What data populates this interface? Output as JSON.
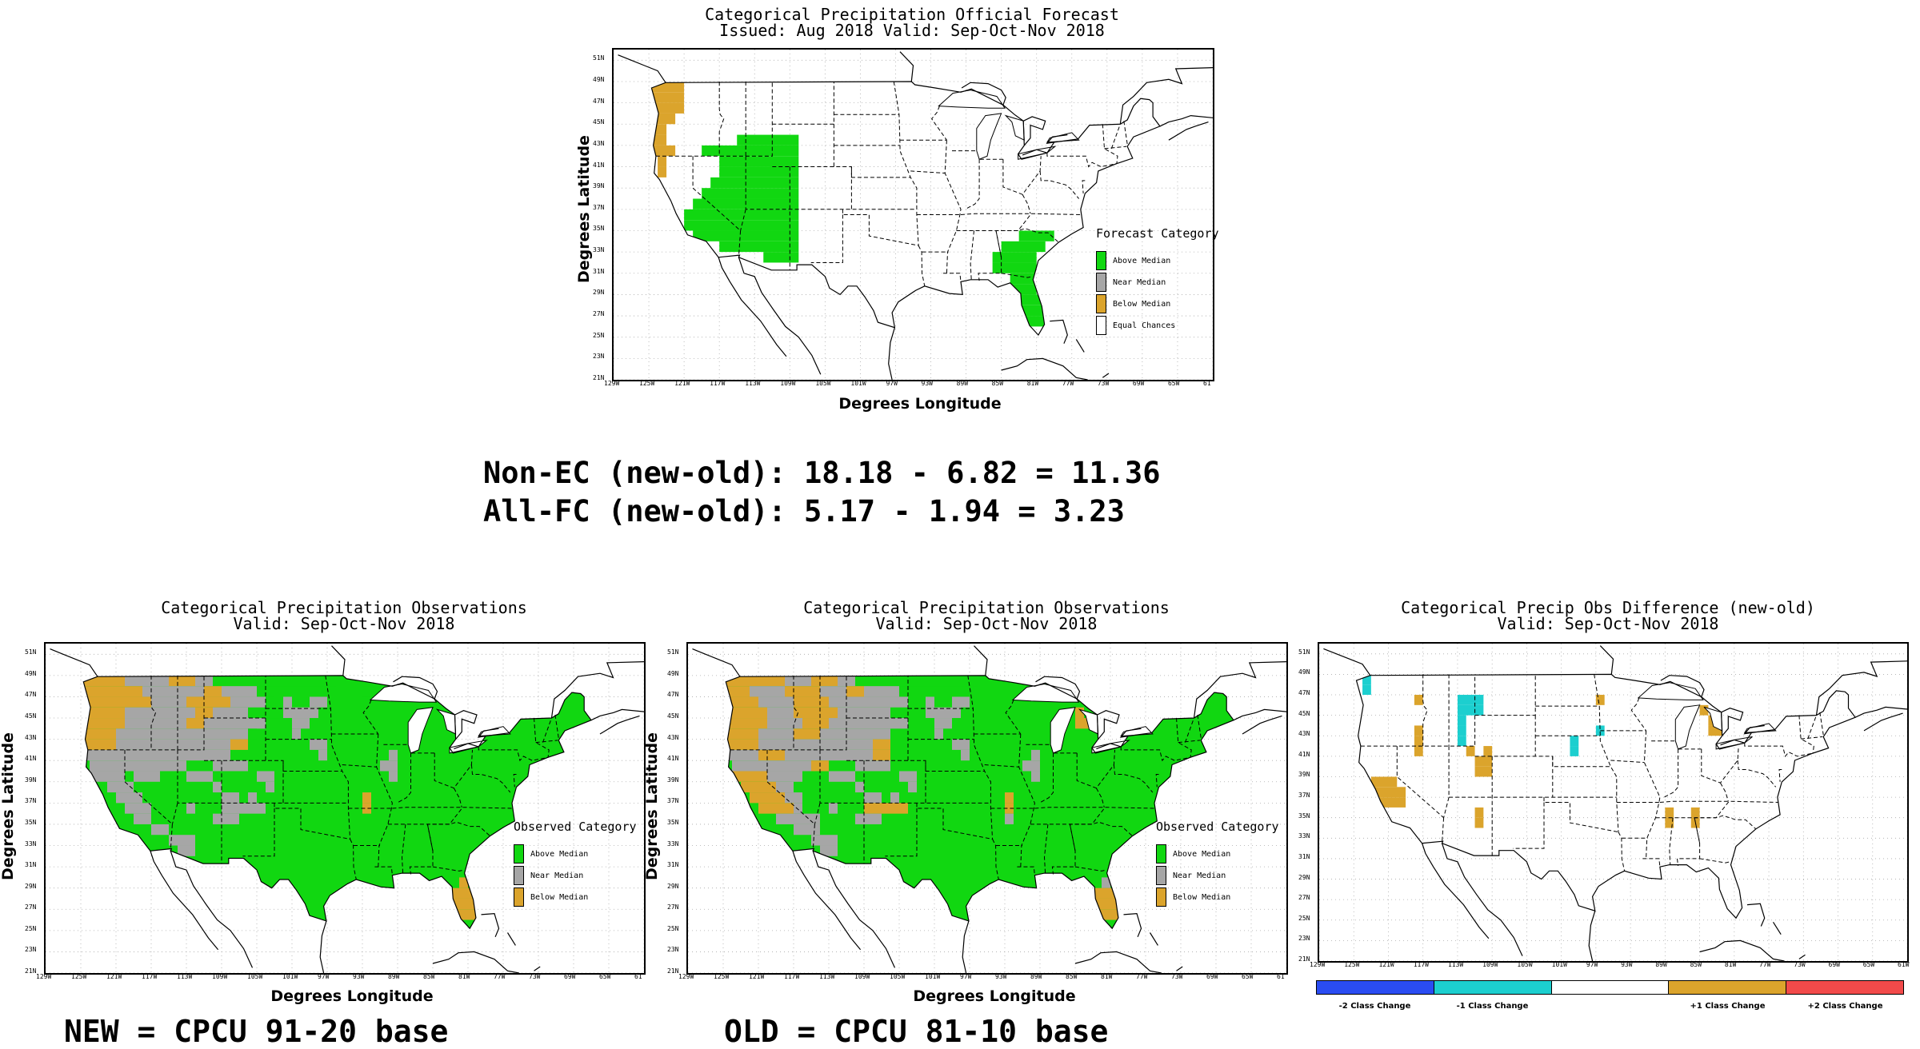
{
  "colors": {
    "above": "#11d711",
    "near": "#a6a6a6",
    "below": "#dba42c",
    "equal": "#ffffff",
    "minus2": "#2a4cf2",
    "minus1": "#1ccfcf",
    "zero": "#ffffff",
    "plus1": "#dba42c",
    "plus2": "#f24a4a"
  },
  "axes": {
    "lat_ticks": [
      "51N",
      "49N",
      "47N",
      "45N",
      "43N",
      "41N",
      "39N",
      "37N",
      "35N",
      "33N",
      "31N",
      "29N",
      "27N",
      "25N",
      "23N",
      "21N"
    ],
    "lon_ticks": [
      "129W",
      "125W",
      "121W",
      "117W",
      "113W",
      "109W",
      "105W",
      "101W",
      "97W",
      "93W",
      "89W",
      "85W",
      "81W",
      "77W",
      "73W",
      "69W",
      "65W",
      "61"
    ],
    "lon_ticks_diff": [
      "129W",
      "125W",
      "121W",
      "117W",
      "113W",
      "109W",
      "105W",
      "101W",
      "97W",
      "93W",
      "89W",
      "85W",
      "81W",
      "77W",
      "73W",
      "69W",
      "65W",
      "61W"
    ],
    "x_label": "Degrees Longitude",
    "y_label": "Degrees Latitude"
  },
  "forecast": {
    "title_line1": "Categorical Precipitation Official Forecast",
    "title_line2": "Issued: Aug 2018 Valid: Sep-Oct-Nov 2018",
    "legend_title": "Forecast Category",
    "legend_items": [
      "Above Median",
      "Near Median",
      "Below Median",
      "Equal Chances"
    ]
  },
  "stats": {
    "line1": "Non-EC (new-old): 18.18 - 6.82 = 11.36",
    "line2": "All-FC (new-old): 5.17 - 1.94 = 3.23"
  },
  "obs_new": {
    "title_line1": "Categorical Precipitation Observations",
    "title_line2": "Valid: Sep-Oct-Nov 2018",
    "legend_title": "Observed Category",
    "legend_items": [
      "Above Median",
      "Near Median",
      "Below Median"
    ],
    "base_label": "NEW = CPCU 91-20 base"
  },
  "obs_old": {
    "title_line1": "Categorical Precipitation Observations",
    "title_line2": "Valid: Sep-Oct-Nov 2018",
    "legend_title": "Observed Category",
    "legend_items": [
      "Above Median",
      "Near Median",
      "Below Median"
    ],
    "base_label": "OLD = CPCU 81-10 base"
  },
  "difference": {
    "title_line1": "Categorical Precip Obs Difference (new-old)",
    "title_line2": "Valid: Sep-Oct-Nov 2018",
    "colorbar_labels": [
      "-2 Class Change",
      "-1 Class Change",
      "+1 Class Change",
      "+2 Class Change"
    ]
  }
}
